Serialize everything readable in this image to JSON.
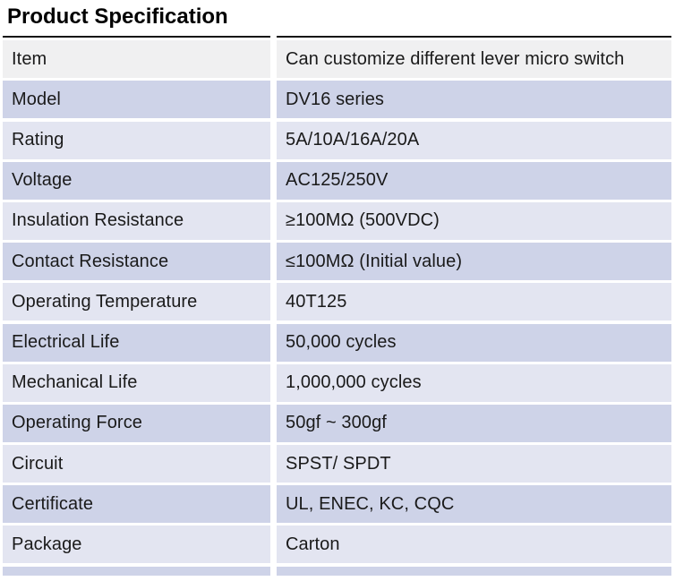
{
  "page": {
    "title": "Product Specification"
  },
  "table": {
    "columns": [
      "label",
      "value"
    ],
    "rows": [
      {
        "label": "Item",
        "value": "Can customize different lever micro switch"
      },
      {
        "label": "Model",
        "value": "DV16 series"
      },
      {
        "label": "Rating",
        "value": "5A/10A/16A/20A"
      },
      {
        "label": "Voltage",
        "value": "AC125/250V"
      },
      {
        "label": "Insulation Resistance",
        "value": "≥100MΩ (500VDC)"
      },
      {
        "label": "Contact Resistance",
        "value": "≤100MΩ (Initial value)"
      },
      {
        "label": "Operating Temperature",
        "value": "40T125"
      },
      {
        "label": "Electrical Life",
        "value": "50,000 cycles"
      },
      {
        "label": "Mechanical Life",
        "value": "1,000,000 cycles"
      },
      {
        "label": "Operating Force",
        "value": "50gf ~ 300gf"
      },
      {
        "label": "Circuit",
        "value": "SPST/ SPDT"
      },
      {
        "label": "Certificate",
        "value": "UL, ENEC, KC, CQC"
      },
      {
        "label": "Package",
        "value": "Carton"
      }
    ],
    "clipped_bottom_row_visible": true
  },
  "colors": {
    "header_row_bg": "#f0f0f1",
    "dark_row_bg": "#ced3e8",
    "light_row_bg": "#e3e5f1",
    "top_border": "#141414",
    "text": "#1a1a1a",
    "title_text": "#000000"
  }
}
